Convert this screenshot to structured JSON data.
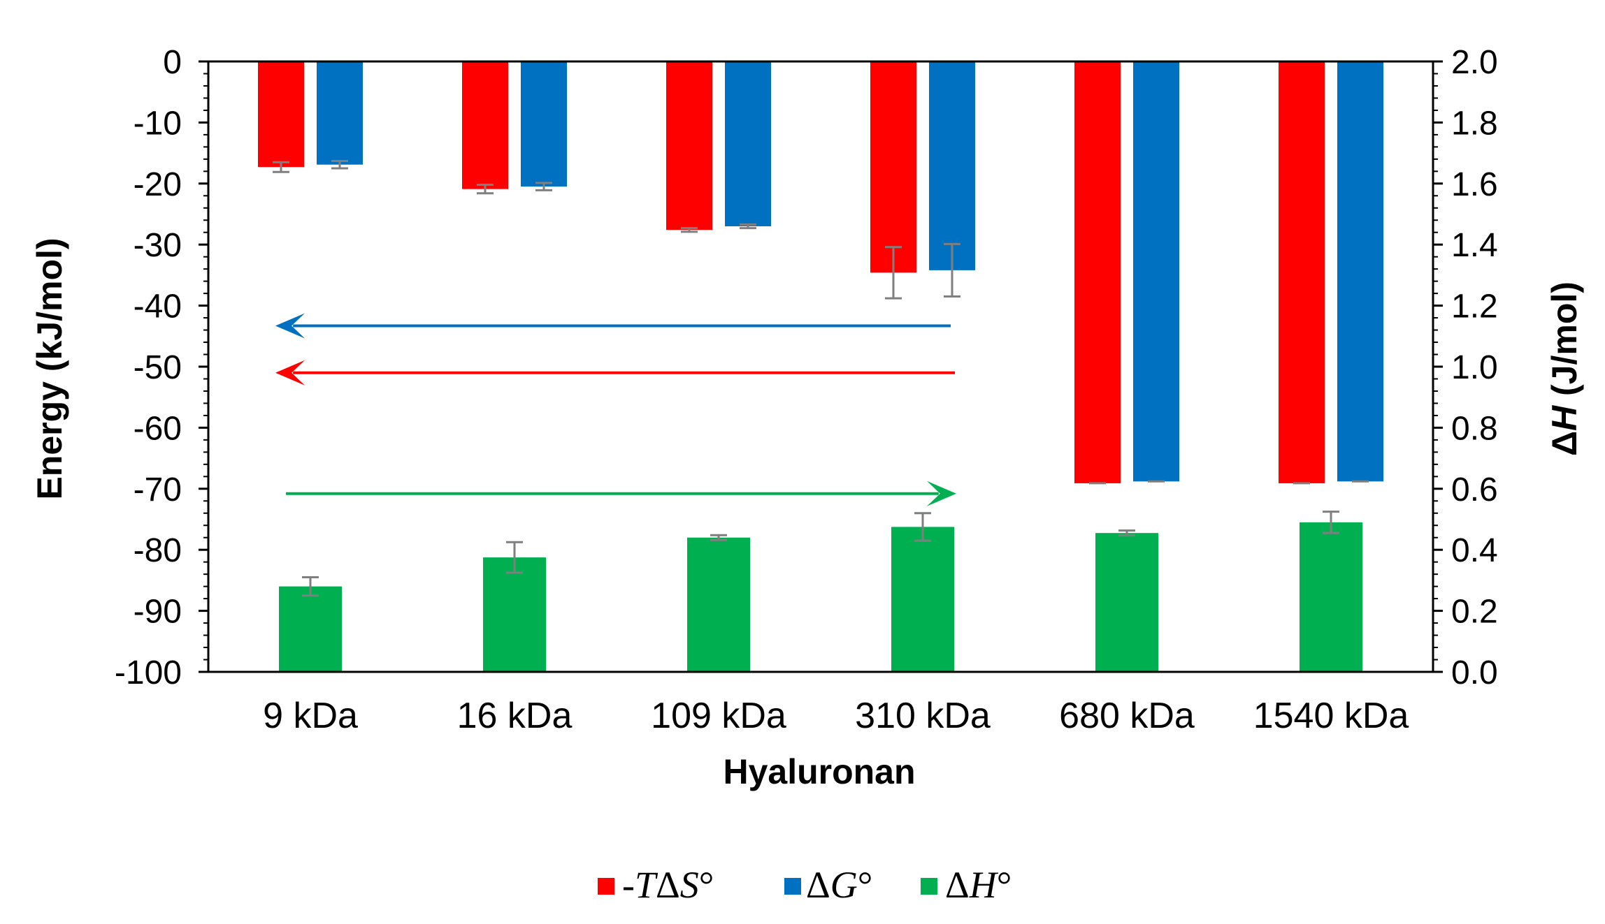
{
  "chart_data": {
    "type": "bar",
    "title": "",
    "xlabel": "Hyaluronan",
    "ylabel": "Energy (kJ/mol)",
    "y2label_prefix": "Δ",
    "y2label_italic": "H",
    "y2label_suffix": " (J/mol)",
    "ylim": [
      -100,
      0
    ],
    "y2lim": [
      0.0,
      2.0
    ],
    "yticks": [
      "0",
      "-10",
      "-20",
      "-30",
      "-40",
      "-50",
      "-60",
      "-70",
      "-80",
      "-90",
      "-100"
    ],
    "y2ticks": [
      "2.0",
      "1.8",
      "1.6",
      "1.4",
      "1.2",
      "1.0",
      "0.8",
      "0.6",
      "0.4",
      "0.2",
      "0.0"
    ],
    "categories": [
      "9 kDa",
      "16 kDa",
      "109 kDa",
      "310 kDa",
      "680 kDa",
      "1540 kDa"
    ],
    "series": [
      {
        "name": "-TΔS°",
        "axis": "left",
        "color": "#ff0000",
        "values": [
          -17.3,
          -20.9,
          -27.6,
          -34.6,
          -69.1,
          -69.1
        ],
        "errors": [
          0.8,
          0.7,
          0.3,
          4.2,
          0,
          0
        ]
      },
      {
        "name": "ΔG°",
        "axis": "left",
        "color": "#0070c0",
        "values": [
          -16.9,
          -20.5,
          -27.0,
          -34.2,
          -68.8,
          -68.8
        ],
        "errors": [
          0.6,
          0.6,
          0.3,
          4.3,
          0,
          0
        ]
      },
      {
        "name": "ΔH°",
        "axis": "right",
        "color": "#00b050",
        "values": [
          0.28,
          0.375,
          0.44,
          0.475,
          0.455,
          0.49
        ],
        "errors": [
          0.03,
          0.05,
          0.008,
          0.045,
          0.008,
          0.035
        ]
      }
    ],
    "legend": {
      "position": "bottom",
      "items": [
        {
          "prefix": "-",
          "italic": "T",
          "mid": "Δ",
          "italic2": "S",
          "suffix": "°",
          "color": "#ff0000"
        },
        {
          "prefix": "Δ",
          "italic": "G",
          "mid": "",
          "italic2": "",
          "suffix": "°",
          "color": "#0070c0"
        },
        {
          "prefix": "Δ",
          "italic": "H",
          "mid": "",
          "italic2": "",
          "suffix": "°",
          "color": "#00b050"
        }
      ]
    },
    "annotations": [
      {
        "type": "arrow",
        "direction": "left",
        "color": "#0070c0",
        "y_value": -43.3,
        "from_category": 3,
        "to_category": 0
      },
      {
        "type": "arrow",
        "direction": "left",
        "color": "#ff0000",
        "y_value": -51.0,
        "from_category": 3,
        "to_category": 0
      },
      {
        "type": "arrow",
        "direction": "right",
        "color": "#00b050",
        "y_value": -70.8,
        "from_category": 0,
        "to_category": 3
      }
    ]
  }
}
